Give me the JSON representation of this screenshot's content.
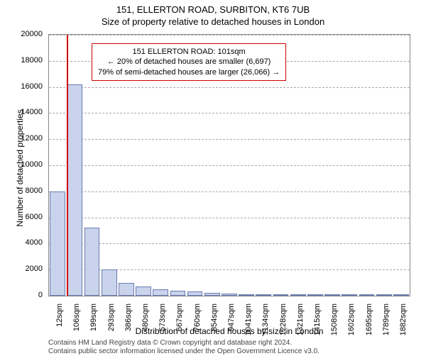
{
  "title_line1": "151, ELLERTON ROAD, SURBITON, KT6 7UB",
  "title_line2": "Size of property relative to detached houses in London",
  "yaxis": {
    "title": "Number of detached properties",
    "min": 0,
    "max": 20000,
    "tick_step": 2000,
    "ticks": [
      0,
      2000,
      4000,
      6000,
      8000,
      10000,
      12000,
      14000,
      16000,
      18000,
      20000
    ]
  },
  "xaxis": {
    "title": "Distribution of detached houses by size in London",
    "labels": [
      "12sqm",
      "106sqm",
      "199sqm",
      "293sqm",
      "386sqm",
      "480sqm",
      "573sqm",
      "667sqm",
      "760sqm",
      "854sqm",
      "947sqm",
      "1041sqm",
      "1134sqm",
      "1228sqm",
      "1321sqm",
      "1415sqm",
      "1508sqm",
      "1602sqm",
      "1695sqm",
      "1789sqm",
      "1882sqm"
    ]
  },
  "bars": {
    "values": [
      8000,
      16200,
      5200,
      2000,
      1000,
      700,
      500,
      400,
      300,
      200,
      150,
      100,
      80,
      60,
      50,
      40,
      30,
      20,
      15,
      10,
      5
    ],
    "fill_color": "#c9d3ec",
    "border_color": "#6a7cb0",
    "width_frac": 0.9
  },
  "marker": {
    "index": 1,
    "color": "#d00000"
  },
  "annotation": {
    "line1": "151 ELLERTON ROAD: 101sqm",
    "line2": "← 20% of detached houses are smaller (6,697)",
    "line3": "79% of semi-detached houses are larger (26,066) →",
    "border_color": "#d00000"
  },
  "footer": {
    "line1": "Contains HM Land Registry data © Crown copyright and database right 2024.",
    "line2": "Contains public sector information licensed under the Open Government Licence v3.0."
  },
  "colors": {
    "grid": "#aaaaaa",
    "axis": "#888888",
    "text": "#000000",
    "background": "#ffffff"
  },
  "fonts": {
    "title_size_pt": 13,
    "label_size_pt": 11,
    "axis_title_size_pt": 12,
    "footer_size_pt": 10
  }
}
